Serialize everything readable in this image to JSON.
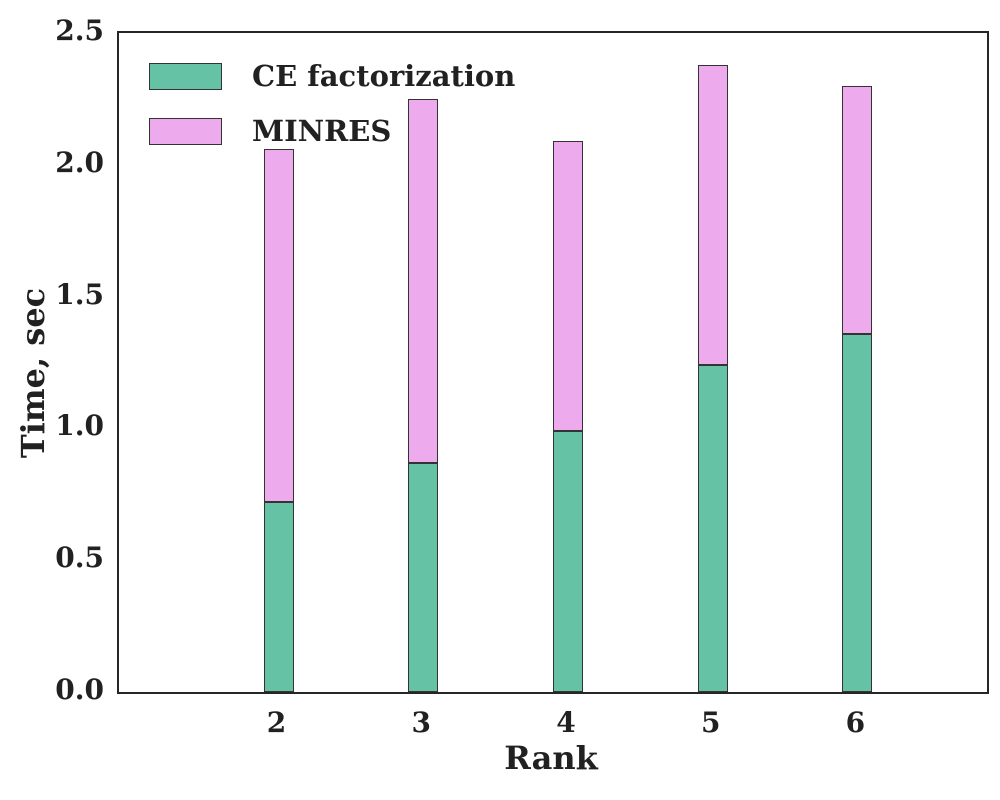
{
  "chart_data": {
    "type": "bar",
    "stacked": true,
    "title": "",
    "xlabel": "Rank",
    "ylabel": "Time, sec",
    "categories": [
      "2",
      "3",
      "4",
      "5",
      "6"
    ],
    "series": [
      {
        "name": "CE factorization",
        "color": "#66C2A5",
        "values": [
          0.72,
          0.87,
          0.99,
          1.24,
          1.36
        ]
      },
      {
        "name": "MINRES",
        "color": "#EDABEE",
        "values": [
          1.34,
          1.38,
          1.1,
          1.14,
          0.94
        ]
      }
    ],
    "stack_totals": [
      2.06,
      2.25,
      2.09,
      2.38,
      2.3
    ],
    "ylim": [
      0.0,
      2.5
    ],
    "ytick_labels": [
      "0.0",
      "0.5",
      "1.0",
      "1.5",
      "2.0",
      "2.5"
    ],
    "ytick_values": [
      0.0,
      0.5,
      1.0,
      1.5,
      2.0,
      2.5
    ],
    "grid": false,
    "legend_position": "upper-left",
    "bar_edge_color": "#333333",
    "spine_color": "#262626",
    "text_color": "#212121"
  }
}
